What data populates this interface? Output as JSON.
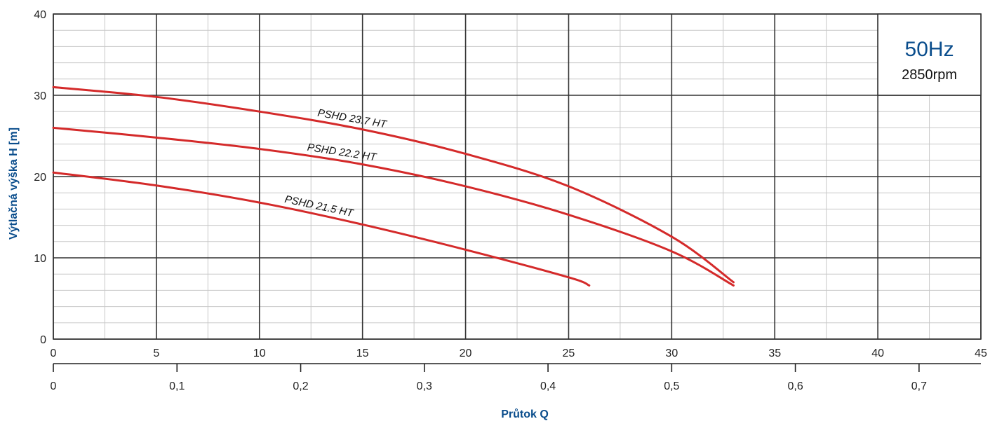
{
  "chart_data": {
    "type": "line",
    "ylabel": "Výtlačná výška H [m]",
    "xlabel": "Průtok Q",
    "xlim": [
      0,
      45
    ],
    "ylim": [
      0,
      40
    ],
    "x_ticks": [
      "0",
      "5",
      "10",
      "15",
      "20",
      "25",
      "30",
      "35",
      "40",
      "45"
    ],
    "y_ticks": [
      "0",
      "10",
      "20",
      "30",
      "40"
    ],
    "secondary_x_ticks": [
      "0",
      "0,1",
      "0,2",
      "0,3",
      "0,4",
      "0,5",
      "0,6",
      "0,7"
    ],
    "grid": true,
    "badge": {
      "frequency": "50Hz",
      "speed": "2850rpm"
    },
    "series": [
      {
        "name": "PSHD 23.7 HT",
        "x": [
          0,
          5,
          10,
          15,
          20,
          25,
          30,
          33
        ],
        "y": [
          31.0,
          29.8,
          28.0,
          25.8,
          22.8,
          18.8,
          12.6,
          7.0
        ]
      },
      {
        "name": "PSHD 22.2 HT",
        "x": [
          0,
          5,
          10,
          15,
          20,
          25,
          30,
          33
        ],
        "y": [
          26.0,
          24.8,
          23.4,
          21.5,
          18.8,
          15.3,
          10.8,
          6.6
        ]
      },
      {
        "name": "PSHD 21.5 HT",
        "x": [
          0,
          5,
          10,
          15,
          20,
          25,
          26
        ],
        "y": [
          20.5,
          18.9,
          16.8,
          14.1,
          11.0,
          7.6,
          6.6
        ]
      }
    ]
  },
  "colors": {
    "curve": "#d42a2a",
    "axis_title": "#0a4d8c",
    "badge_main": "#0a4d8c",
    "grid_major": "#333333",
    "grid_minor": "#c8c8c8"
  }
}
